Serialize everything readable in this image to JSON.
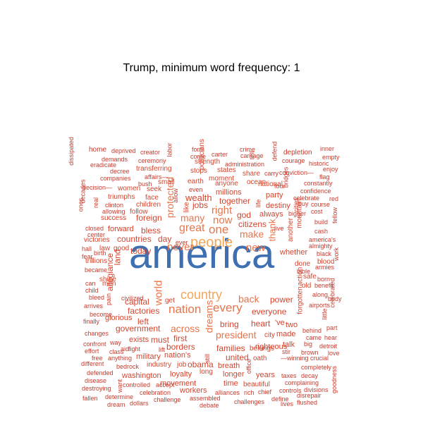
{
  "title": "Trump, minimum word frequency: 1",
  "colors": {
    "c1": "#3e6fb0",
    "c2": "#f2a65a",
    "c3": "#e8744a",
    "c4": "#d4442d",
    "c5": "#c63b2e"
  },
  "words": [
    {
      "text": "america",
      "color": "c1",
      "rot": false
    },
    {
      "text": "people",
      "color": "c2",
      "rot": false
    },
    {
      "text": "country",
      "color": "c2",
      "rot": false
    },
    {
      "text": "nation",
      "color": "c3",
      "rot": false
    },
    {
      "text": "every",
      "color": "c3",
      "rot": false
    },
    {
      "text": "one",
      "color": "c3",
      "rot": false
    },
    {
      "text": "great",
      "color": "c3",
      "rot": false
    },
    {
      "text": "never",
      "color": "c3",
      "rot": false
    },
    {
      "text": "right",
      "color": "c3",
      "rot": false
    },
    {
      "text": "now",
      "color": "c3",
      "rot": false
    },
    {
      "text": "many",
      "color": "c3",
      "rot": false
    },
    {
      "text": "make",
      "color": "c3",
      "rot": false
    },
    {
      "text": "new",
      "color": "c3",
      "rot": false
    },
    {
      "text": "back",
      "color": "c3",
      "rot": false
    },
    {
      "text": "world",
      "color": "c3",
      "rot": true
    },
    {
      "text": "protected",
      "color": "c3",
      "rot": true
    },
    {
      "text": "across",
      "color": "c3",
      "rot": false
    },
    {
      "text": "president",
      "color": "c3",
      "rot": false
    },
    {
      "text": "dreams",
      "color": "c3",
      "rot": true
    },
    {
      "text": "thank",
      "color": "c3",
      "rot": true
    },
    {
      "text": "wealth",
      "color": "c4",
      "rot": false
    },
    {
      "text": "jobs",
      "color": "c4",
      "rot": false
    },
    {
      "text": "together",
      "color": "c4",
      "rot": false
    },
    {
      "text": "god",
      "color": "c4",
      "rot": false
    },
    {
      "text": "citizens",
      "color": "c4",
      "rot": false
    },
    {
      "text": "today",
      "color": "c4",
      "rot": false
    },
    {
      "text": "bless",
      "color": "c4",
      "rot": false
    },
    {
      "text": "day",
      "color": "c4",
      "rot": false
    },
    {
      "text": "power",
      "color": "c4",
      "rot": false
    },
    {
      "text": "everyone",
      "color": "c4",
      "rot": false
    },
    {
      "text": "government",
      "color": "c4",
      "rot": false
    },
    {
      "text": "capital",
      "color": "c4",
      "rot": false
    },
    {
      "text": "factories",
      "color": "c4",
      "rot": false
    },
    {
      "text": "left",
      "color": "c4",
      "rot": false
    },
    {
      "text": "first",
      "color": "c4",
      "rot": false
    },
    {
      "text": "bring",
      "color": "c4",
      "rot": false
    },
    {
      "text": "heart",
      "color": "c4",
      "rot": false
    },
    {
      "text": "united",
      "color": "c4",
      "rot": false
    },
    {
      "text": "families",
      "color": "c4",
      "rot": false
    },
    {
      "text": "foreign",
      "color": "c4",
      "rot": false
    },
    {
      "text": "millions",
      "color": "c4",
      "rot": false
    },
    {
      "text": "countries",
      "color": "c4",
      "rot": false
    },
    {
      "text": "forward",
      "color": "c4",
      "rot": false
    },
    {
      "text": "land",
      "color": "c4",
      "rot": true
    },
    {
      "text": "allegiance",
      "color": "c4",
      "rot": true
    },
    {
      "text": "whether",
      "color": "c4",
      "rot": false
    },
    {
      "text": "destiny",
      "color": "c4",
      "rot": false
    },
    {
      "text": "always",
      "color": "c4",
      "rot": false
    },
    {
      "text": "national",
      "color": "c4",
      "rot": false
    },
    {
      "text": "party",
      "color": "c4",
      "rot": false
    },
    {
      "text": "obama",
      "color": "c4",
      "rot": false
    },
    {
      "text": "borders",
      "color": "c4",
      "rot": false
    },
    {
      "text": "exists",
      "color": "c4",
      "rot": false
    },
    {
      "text": "must",
      "color": "c4",
      "rot": false
    },
    {
      "text": "nation's",
      "color": "c4",
      "rot": false
    },
    {
      "text": "military",
      "color": "c4",
      "rot": false
    },
    {
      "text": "glorious",
      "color": "c4",
      "rot": false
    },
    {
      "text": "breath",
      "color": "c4",
      "rot": false
    },
    {
      "text": "longer",
      "color": "c4",
      "rot": false
    },
    {
      "text": "years",
      "color": "c4",
      "rot": false
    },
    {
      "text": "righteous",
      "color": "c4",
      "rot": false
    },
    {
      "text": "made",
      "color": "c4",
      "rot": false
    },
    {
      "text": "talk",
      "color": "c4",
      "rot": false
    },
    {
      "text": "two",
      "color": "c4",
      "rot": false
    },
    {
      "text": "'ve",
      "color": "c4",
      "rot": false
    },
    {
      "text": "washington",
      "color": "c4",
      "rot": false
    },
    {
      "text": "loyalty",
      "color": "c4",
      "rot": false
    },
    {
      "text": "movement",
      "color": "c4",
      "rot": false
    },
    {
      "text": "time",
      "color": "c4",
      "rot": false
    },
    {
      "text": "workers",
      "color": "c4",
      "rot": false
    },
    {
      "text": "strength",
      "color": "c4",
      "rot": false
    },
    {
      "text": "moment",
      "color": "c4",
      "rot": false
    },
    {
      "text": "earth",
      "color": "c4",
      "rot": false
    },
    {
      "text": "stops",
      "color": "c4",
      "rot": false
    },
    {
      "text": "states",
      "color": "c4",
      "rot": false
    },
    {
      "text": "anyone",
      "color": "c4",
      "rot": false
    },
    {
      "text": "ocean",
      "color": "c4",
      "rot": false
    },
    {
      "text": "share",
      "color": "c4",
      "rot": false
    },
    {
      "text": "small",
      "color": "c4",
      "rot": false
    },
    {
      "text": "transferring",
      "color": "c4",
      "rot": false
    },
    {
      "text": "women",
      "color": "c4",
      "rot": false
    },
    {
      "text": "seek",
      "color": "c4",
      "rot": false
    },
    {
      "text": "triumphs",
      "color": "c4",
      "rot": false
    },
    {
      "text": "face",
      "color": "c4",
      "rot": false
    },
    {
      "text": "children",
      "color": "c4",
      "rot": false
    },
    {
      "text": "success",
      "color": "c4",
      "rot": false
    },
    {
      "text": "follow",
      "color": "c4",
      "rot": false
    },
    {
      "text": "victories",
      "color": "c4",
      "rot": false
    },
    {
      "text": "trillions",
      "color": "c4",
      "rot": false
    },
    {
      "text": "good",
      "color": "c4",
      "rot": false
    },
    {
      "text": "law",
      "color": "c4",
      "rot": false
    },
    {
      "text": "shine",
      "color": "c4",
      "rot": false
    },
    {
      "text": "men",
      "color": "c4",
      "rot": false
    },
    {
      "text": "get",
      "color": "c4",
      "rot": false
    },
    {
      "text": "city",
      "color": "c4",
      "rot": false
    },
    {
      "text": "belongs",
      "color": "c4",
      "rot": false
    },
    {
      "text": "oath",
      "color": "c4",
      "rot": false
    },
    {
      "text": "industry",
      "color": "c4",
      "rot": false
    },
    {
      "text": "job",
      "color": "c4",
      "rot": false
    },
    {
      "text": "long",
      "color": "c4",
      "rot": false
    },
    {
      "text": "beautiful",
      "color": "c4",
      "rot": false
    },
    {
      "text": "done",
      "color": "c4",
      "rot": false
    },
    {
      "text": "safe",
      "color": "c4",
      "rot": false
    },
    {
      "text": "old",
      "color": "c4",
      "rot": false
    },
    {
      "text": "blood",
      "color": "c4",
      "rot": false
    },
    {
      "text": "action",
      "color": "c4",
      "rot": true
    },
    {
      "text": "forgotten",
      "color": "c4",
      "rot": true
    },
    {
      "text": "another",
      "color": "c4",
      "rot": true
    },
    {
      "text": "mountain",
      "color": "c4",
      "rot": true
    },
    {
      "text": "like",
      "color": "c4",
      "rot": true
    },
    {
      "text": "politicians",
      "color": "c4",
      "rot": true
    },
    {
      "text": "home",
      "color": "c5",
      "rot": false
    },
    {
      "text": "deprived",
      "color": "c5",
      "rot": false
    },
    {
      "text": "creator",
      "color": "c5",
      "rot": false
    },
    {
      "text": "form",
      "color": "c5",
      "rot": false
    },
    {
      "text": "come",
      "color": "c5",
      "rot": false
    },
    {
      "text": "carter",
      "color": "c5",
      "rot": false
    },
    {
      "text": "crime",
      "color": "c5",
      "rot": false
    },
    {
      "text": "carnage",
      "color": "c5",
      "rot": false
    },
    {
      "text": "depletion",
      "color": "c5",
      "rot": false
    },
    {
      "text": "inner",
      "color": "c5",
      "rot": false
    },
    {
      "text": "empty",
      "color": "c5",
      "rot": false
    },
    {
      "text": "demands",
      "color": "c5",
      "rot": false
    },
    {
      "text": "ceremony",
      "color": "c5",
      "rot": false
    },
    {
      "text": "administration",
      "color": "c5",
      "rot": false
    },
    {
      "text": "courage",
      "color": "c5",
      "rot": false
    },
    {
      "text": "historic",
      "color": "c5",
      "rot": false
    },
    {
      "text": "eradicate",
      "color": "c5",
      "rot": false
    },
    {
      "text": "decree",
      "color": "c5",
      "rot": false
    },
    {
      "text": "companies",
      "color": "c5",
      "rot": false
    },
    {
      "text": "affairs—",
      "color": "c5",
      "rot": false
    },
    {
      "text": "conviction—",
      "color": "c5",
      "rot": false
    },
    {
      "text": "enjoy",
      "color": "c5",
      "rot": false
    },
    {
      "text": "flag",
      "color": "c5",
      "rot": false
    },
    {
      "text": "carry",
      "color": "c5",
      "rot": false
    },
    {
      "text": "decision—",
      "color": "c5",
      "rot": false
    },
    {
      "text": "bush",
      "color": "c5",
      "rot": false
    },
    {
      "text": "four",
      "color": "c5",
      "rot": false
    },
    {
      "text": "celebrate",
      "color": "c5",
      "rot": false
    },
    {
      "text": "confidence",
      "color": "c5",
      "rot": false
    },
    {
      "text": "constantly",
      "color": "c5",
      "rot": false
    },
    {
      "text": "clinton",
      "color": "c5",
      "rot": false
    },
    {
      "text": "allowing",
      "color": "c5",
      "rot": false
    },
    {
      "text": "even",
      "color": "c5",
      "rot": false
    },
    {
      "text": "buy",
      "color": "c5",
      "rot": false
    },
    {
      "text": "course",
      "color": "c5",
      "rot": false
    },
    {
      "text": "red",
      "color": "c5",
      "rot": false
    },
    {
      "text": "cost",
      "color": "c5",
      "rot": false
    },
    {
      "text": "bigger",
      "color": "c5",
      "rot": false
    },
    {
      "text": "build",
      "color": "c5",
      "rot": false
    },
    {
      "text": "cash",
      "color": "c5",
      "rot": false
    },
    {
      "text": "closed",
      "color": "c5",
      "rot": false
    },
    {
      "text": "center",
      "color": "c5",
      "rot": false
    },
    {
      "text": "live",
      "color": "c5",
      "rot": false
    },
    {
      "text": "america's",
      "color": "c5",
      "rot": false
    },
    {
      "text": "almighty",
      "color": "c5",
      "rot": false
    },
    {
      "text": "black",
      "color": "c5",
      "rot": false
    },
    {
      "text": "hall",
      "color": "c5",
      "rot": false
    },
    {
      "text": "birth",
      "color": "c5",
      "rot": false
    },
    {
      "text": "ever",
      "color": "c5",
      "rot": false
    },
    {
      "text": "fear",
      "color": "c5",
      "rot": false
    },
    {
      "text": "became",
      "color": "c5",
      "rot": false
    },
    {
      "text": "bible",
      "color": "c5",
      "rot": false
    },
    {
      "text": "armies",
      "color": "c5",
      "rot": false
    },
    {
      "text": "born",
      "color": "c5",
      "rot": false
    },
    {
      "text": "can",
      "color": "c5",
      "rot": false
    },
    {
      "text": "benefit",
      "color": "c5",
      "rot": false
    },
    {
      "text": "child",
      "color": "c5",
      "rot": false
    },
    {
      "text": "civilized",
      "color": "c5",
      "rot": false
    },
    {
      "text": "along",
      "color": "c5",
      "rot": false
    },
    {
      "text": "bleed",
      "color": "c5",
      "rot": false
    },
    {
      "text": "airports",
      "color": "c5",
      "rot": false
    },
    {
      "text": "arrives",
      "color": "c5",
      "rot": false
    },
    {
      "text": "become",
      "color": "c5",
      "rot": false
    },
    {
      "text": "body",
      "color": "c5",
      "rot": false
    },
    {
      "text": "finally",
      "color": "c5",
      "rot": false
    },
    {
      "text": "part",
      "color": "c5",
      "rot": false
    },
    {
      "text": "behind",
      "color": "c5",
      "rot": false
    },
    {
      "text": "changes",
      "color": "c5",
      "rot": false
    },
    {
      "text": "came",
      "color": "c5",
      "rot": false
    },
    {
      "text": "hear",
      "color": "c5",
      "rot": false
    },
    {
      "text": "confront",
      "color": "c5",
      "rot": false
    },
    {
      "text": "way",
      "color": "c5",
      "rot": false
    },
    {
      "text": "big",
      "color": "c5",
      "rot": false
    },
    {
      "text": "detroit",
      "color": "c5",
      "rot": false
    },
    {
      "text": "effort",
      "color": "c5",
      "rot": false
    },
    {
      "text": "aid",
      "color": "c5",
      "rot": false
    },
    {
      "text": "fight",
      "color": "c5",
      "rot": false
    },
    {
      "text": "lift",
      "color": "c5",
      "rot": false
    },
    {
      "text": "stir",
      "color": "c5",
      "rot": false
    },
    {
      "text": "brown",
      "color": "c5",
      "rot": false
    },
    {
      "text": "love",
      "color": "c5",
      "rot": false
    },
    {
      "text": "class",
      "color": "c5",
      "rot": false
    },
    {
      "text": "free",
      "color": "c5",
      "rot": false
    },
    {
      "text": "anything",
      "color": "c5",
      "rot": false
    },
    {
      "text": "—winning",
      "color": "c5",
      "rot": false
    },
    {
      "text": "crucial",
      "color": "c5",
      "rot": false
    },
    {
      "text": "different",
      "color": "c5",
      "rot": false
    },
    {
      "text": "bedrock",
      "color": "c5",
      "rot": false
    },
    {
      "text": "completely",
      "color": "c5",
      "rot": false
    },
    {
      "text": "defended",
      "color": "c5",
      "rot": false
    },
    {
      "text": "taxes",
      "color": "c5",
      "rot": false
    },
    {
      "text": "decay",
      "color": "c5",
      "rot": false
    },
    {
      "text": "disease",
      "color": "c5",
      "rot": false
    },
    {
      "text": "controlled",
      "color": "c5",
      "rot": false
    },
    {
      "text": "accept",
      "color": "c5",
      "rot": false
    },
    {
      "text": "complaining",
      "color": "c5",
      "rot": false
    },
    {
      "text": "destroying",
      "color": "c5",
      "rot": false
    },
    {
      "text": "celebration",
      "color": "c5",
      "rot": false
    },
    {
      "text": "alliances",
      "color": "c5",
      "rot": false
    },
    {
      "text": "rich",
      "color": "c5",
      "rot": false
    },
    {
      "text": "chief",
      "color": "c5",
      "rot": false
    },
    {
      "text": "controls",
      "color": "c5",
      "rot": false
    },
    {
      "text": "divisions",
      "color": "c5",
      "rot": false
    },
    {
      "text": "fallen",
      "color": "c5",
      "rot": false
    },
    {
      "text": "determine",
      "color": "c5",
      "rot": false
    },
    {
      "text": "challenge",
      "color": "c5",
      "rot": false
    },
    {
      "text": "define",
      "color": "c5",
      "rot": false
    },
    {
      "text": "disrepair",
      "color": "c5",
      "rot": false
    },
    {
      "text": "dream",
      "color": "c5",
      "rot": false
    },
    {
      "text": "dollars",
      "color": "c5",
      "rot": false
    },
    {
      "text": "debate",
      "color": "c5",
      "rot": false
    },
    {
      "text": "challenges",
      "color": "c5",
      "rot": false
    },
    {
      "text": "lives",
      "color": "c5",
      "rot": false
    },
    {
      "text": "flushed",
      "color": "c5",
      "rot": false
    },
    {
      "text": "assembled",
      "color": "c5",
      "rot": false
    },
    {
      "text": "labor",
      "color": "c5",
      "rot": true
    },
    {
      "text": "tell",
      "color": "c5",
      "rot": true
    },
    {
      "text": "defend",
      "color": "c5",
      "rot": true
    },
    {
      "text": "bridges",
      "color": "c5",
      "rot": true
    },
    {
      "text": "dissipated",
      "color": "c5",
      "rot": true
    },
    {
      "text": "decades",
      "color": "c5",
      "rot": true
    },
    {
      "text": "ones",
      "color": "c5",
      "rot": true
    },
    {
      "text": "real",
      "color": "c5",
      "rot": true
    },
    {
      "text": "allow",
      "color": "c5",
      "rot": true
    },
    {
      "text": "life",
      "color": "c5",
      "rot": true
    },
    {
      "text": "cities",
      "color": "c5",
      "rot": true
    },
    {
      "text": "fellow",
      "color": "c5",
      "rot": true
    },
    {
      "text": "work",
      "color": "c5",
      "rot": true
    },
    {
      "text": "pain",
      "color": "c5",
      "rot": true
    },
    {
      "text": "little",
      "color": "c5",
      "rot": true
    },
    {
      "text": "celebrated",
      "color": "c5",
      "rot": true
    },
    {
      "text": "goodness",
      "color": "c5",
      "rot": true
    },
    {
      "text": "office",
      "color": "c5",
      "rot": true
    },
    {
      "text": "want",
      "color": "c5",
      "rot": true
    },
    {
      "text": "still",
      "color": "c5",
      "rot": true
    }
  ]
}
